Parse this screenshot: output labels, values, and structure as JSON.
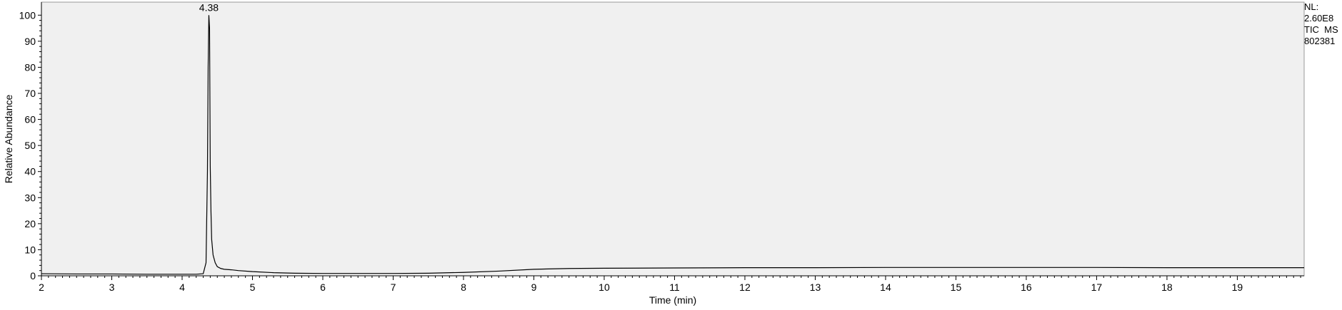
{
  "chart_data": {
    "type": "line",
    "title": "",
    "xlabel": "Time (min)",
    "ylabel": "Relative Abundance",
    "xlim": [
      2.0,
      19.95
    ],
    "ylim": [
      0,
      105
    ],
    "x_ticks": [
      2,
      3,
      4,
      5,
      6,
      7,
      8,
      9,
      10,
      11,
      12,
      13,
      14,
      15,
      16,
      17,
      18,
      19
    ],
    "y_ticks": [
      0,
      10,
      20,
      30,
      40,
      50,
      60,
      70,
      80,
      90,
      100
    ],
    "grid": false,
    "legend": "none",
    "annotations": [
      {
        "text": "4.38",
        "x": 4.38,
        "y": 100
      }
    ],
    "series": [
      {
        "x": [
          2.0,
          2.5,
          3.0,
          3.5,
          4.0,
          4.2,
          4.3,
          4.34,
          4.36,
          4.37,
          4.38,
          4.39,
          4.4,
          4.41,
          4.42,
          4.44,
          4.47,
          4.5,
          4.55,
          4.6,
          4.7,
          4.8,
          5.0,
          5.3,
          5.6,
          6.0,
          6.5,
          7.0,
          7.5,
          8.0,
          8.5,
          9.0,
          9.5,
          10.0,
          11.0,
          12.0,
          13.0,
          14.0,
          15.0,
          16.0,
          17.0,
          18.0,
          19.0,
          19.95
        ],
        "y": [
          0.8,
          0.7,
          0.7,
          0.6,
          0.6,
          0.6,
          0.8,
          5.0,
          40.0,
          80.0,
          100.0,
          95.0,
          42.0,
          25.0,
          14.0,
          8.0,
          5.0,
          3.5,
          2.8,
          2.5,
          2.3,
          2.0,
          1.6,
          1.2,
          1.0,
          0.9,
          0.9,
          0.9,
          1.0,
          1.3,
          1.8,
          2.5,
          2.8,
          2.9,
          3.0,
          3.1,
          3.1,
          3.2,
          3.2,
          3.2,
          3.2,
          3.1,
          3.1,
          3.1
        ]
      }
    ]
  },
  "side_info": {
    "nl_label": "NL:",
    "nl_value": "2.60E8",
    "trace": "TIC  MS",
    "sample": "802381"
  }
}
